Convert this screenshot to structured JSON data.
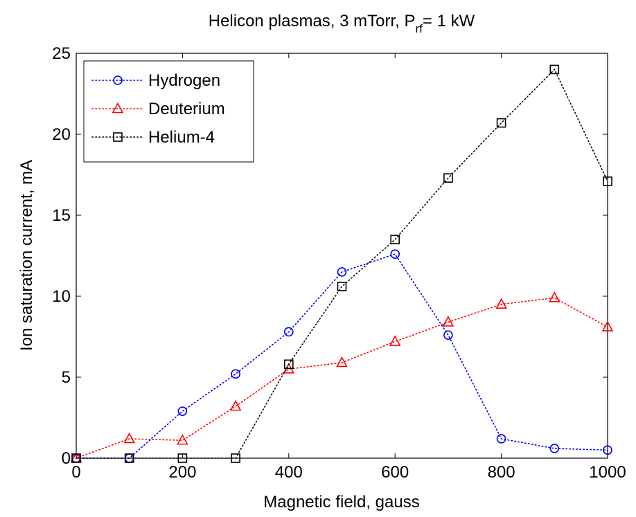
{
  "chart_data": {
    "type": "line",
    "title": {
      "main": "Helicon plasmas, 3 mTorr, P",
      "sub": "rf",
      "tail": "= 1 kW"
    },
    "xlabel": "Magnetic field, gauss",
    "ylabel": "Ion saturation current, mA",
    "xlim": [
      0,
      1000
    ],
    "ylim": [
      0,
      25
    ],
    "xticks": [
      0,
      200,
      400,
      600,
      800,
      1000
    ],
    "yticks": [
      0,
      5,
      10,
      15,
      20,
      25
    ],
    "grid": false,
    "legend_position": "top-left",
    "x": [
      0,
      100,
      200,
      300,
      400,
      500,
      600,
      700,
      800,
      900,
      1000
    ],
    "series": [
      {
        "name": "Hydrogen",
        "color": "#0000ff",
        "marker": "circle",
        "line_style": "dotted",
        "values": [
          0,
          0,
          2.9,
          5.2,
          7.8,
          11.5,
          12.6,
          7.6,
          1.2,
          0.6,
          0.5
        ]
      },
      {
        "name": "Deuterium",
        "color": "#ff0000",
        "marker": "triangle",
        "line_style": "dotted",
        "values": [
          0,
          1.2,
          1.1,
          3.2,
          5.5,
          5.9,
          7.2,
          8.4,
          9.5,
          9.9,
          8.1
        ]
      },
      {
        "name": "Helium-4",
        "color": "#000000",
        "marker": "square",
        "line_style": "dotted",
        "values": [
          0,
          0,
          0,
          0,
          5.8,
          10.6,
          13.5,
          17.3,
          20.7,
          24.0,
          17.1
        ]
      }
    ]
  }
}
